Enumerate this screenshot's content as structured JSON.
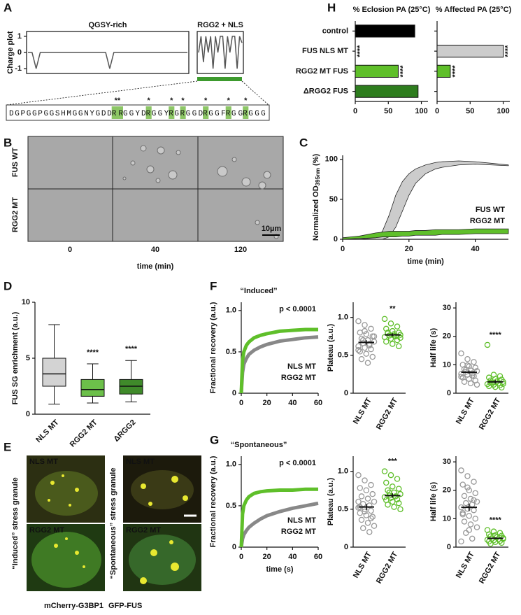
{
  "panels": {
    "letters": [
      "A",
      "B",
      "C",
      "D",
      "E",
      "F",
      "G",
      "H"
    ],
    "sequence": [
      {
        "text": "DGPGGPGGSHMGGNYGDD"
      },
      {
        "text": "RR",
        "star": "**"
      },
      {
        "text": "GGYD"
      },
      {
        "text": "R",
        "star": "*"
      },
      {
        "text": "GGY"
      },
      {
        "text": "R",
        "star": "*"
      },
      {
        "text": "G"
      },
      {
        "text": "R",
        "star": "*"
      },
      {
        "text": "GGD"
      },
      {
        "text": "R",
        "star": "*"
      },
      {
        "text": "GGF"
      },
      {
        "text": "R",
        "star": "*"
      },
      {
        "text": "GG"
      },
      {
        "text": "R",
        "star": "*"
      },
      {
        "text": "GGG"
      }
    ],
    "B": {
      "rows": [
        "FUS WT",
        "RGG2 MT"
      ],
      "times": [
        "0",
        "40",
        "120"
      ],
      "xlabel": "time (min)",
      "scale": "10µm"
    },
    "E": {
      "cells": [
        "NLS MT",
        "NLS MT",
        "RGG2 MT",
        "RGG2 MT"
      ],
      "conditions": [
        "“Induced” stress granule",
        "“Spontaneous” stress granule"
      ],
      "channels": [
        "mCherry-G3BP1",
        "GFP-FUS"
      ]
    }
  },
  "chart_data": [
    {
      "type": "line",
      "title": "QGSY-rich",
      "ylabel": "Charge plot",
      "color": "#555555",
      "ylim": [
        -1.3,
        1.3
      ],
      "yticks": [
        -1,
        0,
        1
      ],
      "values": [
        0,
        0,
        -1,
        0,
        0,
        0,
        0,
        0,
        0,
        0,
        0,
        0,
        0,
        0,
        0,
        0,
        0,
        0,
        0,
        0,
        -1,
        0,
        0,
        0,
        0,
        0,
        0,
        0,
        0,
        0,
        0,
        0,
        0,
        0,
        0,
        0,
        0,
        0,
        0,
        0
      ]
    },
    {
      "type": "line",
      "title": "RGG2 + NLS",
      "color": "#555555",
      "ylim": [
        -1.3,
        1.3
      ],
      "values": [
        0,
        1,
        -0.6,
        1,
        0,
        1,
        -1,
        1,
        0,
        1,
        1,
        -1,
        1,
        0,
        1,
        1,
        -1,
        1,
        0.6
      ]
    },
    {
      "type": "band",
      "ylabel": [
        "Normalized OD",
        "395nm",
        "(%)"
      ],
      "xlabel": "time (min)",
      "xlim": [
        0,
        50
      ],
      "ylim": [
        0,
        105
      ],
      "xticks": [
        0,
        20,
        40
      ],
      "yticks": [
        0,
        50,
        100
      ],
      "x": [
        0,
        5,
        10,
        12,
        14,
        16,
        18,
        20,
        22,
        25,
        28,
        30,
        35,
        40,
        45,
        50
      ],
      "series": [
        {
          "name": "FUS WT",
          "color": "#cccccc",
          "high": [
            0,
            0,
            2,
            10,
            30,
            55,
            72,
            82,
            88,
            93,
            96,
            97,
            98,
            97,
            95,
            93
          ],
          "low": [
            0,
            0,
            0,
            0,
            3,
            15,
            35,
            55,
            70,
            82,
            88,
            90,
            93,
            94,
            93,
            92
          ]
        },
        {
          "name": "RGG2 MT",
          "color": "#5fbf2a",
          "high": [
            2,
            4,
            8,
            9,
            10,
            10,
            10,
            10,
            11,
            11,
            12,
            12,
            12,
            13,
            13,
            13
          ],
          "low": [
            0,
            1,
            2,
            3,
            3,
            3,
            4,
            4,
            5,
            5,
            5,
            6,
            6,
            7,
            7,
            7
          ]
        }
      ]
    },
    {
      "type": "box",
      "ylabel": "FUS SG enrichment (a.u.)",
      "ylim": [
        0,
        10
      ],
      "yticks": [
        0,
        5,
        10
      ],
      "categories": [
        "NLS MT",
        "RGG2 MT",
        "ΔRGG2"
      ],
      "colors": [
        "#d3d3d3",
        "#6cc04a",
        "#3f8a2a"
      ],
      "annotations": [
        null,
        "****",
        "****"
      ],
      "boxes": [
        {
          "min": 0.9,
          "q1": 2.5,
          "median": 3.6,
          "q3": 5.0,
          "max": 8.0
        },
        {
          "min": 1.0,
          "q1": 1.6,
          "median": 2.2,
          "q3": 3.1,
          "max": 4.5
        },
        {
          "min": 1.1,
          "q1": 1.8,
          "median": 2.5,
          "q3": 3.1,
          "max": 4.8
        }
      ]
    },
    {
      "type": "line",
      "title": "“Induced”",
      "ylabel": "Fractional recovery (a.u.)",
      "annotation": "p < 0.0001",
      "xlim": [
        0,
        60
      ],
      "ylim": [
        0,
        1.1
      ],
      "xticks": [
        0,
        20,
        40,
        60
      ],
      "yticks": [
        0,
        0.5,
        {
          "value": 1,
          "label": "1.0"
        }
      ],
      "x": [
        0,
        1,
        2,
        4,
        6,
        10,
        15,
        20,
        30,
        40,
        50,
        60
      ],
      "series": [
        {
          "name": "NLS MT",
          "color": "#888888",
          "values": [
            0,
            0.25,
            0.35,
            0.42,
            0.47,
            0.52,
            0.56,
            0.59,
            0.63,
            0.65,
            0.67,
            0.68
          ]
        },
        {
          "name": "RGG2 MT",
          "color": "#5fbf2a",
          "values": [
            0,
            0.4,
            0.5,
            0.58,
            0.62,
            0.67,
            0.7,
            0.72,
            0.75,
            0.76,
            0.77,
            0.77
          ]
        }
      ]
    },
    {
      "type": "strip",
      "ylabel": "Plateau (a.u.)",
      "ylim": [
        0,
        1.2
      ],
      "yticks": [
        0,
        0.5,
        {
          "value": 1,
          "label": "1.0"
        }
      ],
      "annotations": [
        null,
        "**"
      ],
      "series": [
        {
          "name": "NLS MT",
          "color": "#999999",
          "mean": 0.67,
          "sem": 0.03,
          "values": [
            0.95,
            0.9,
            0.85,
            0.8,
            0.78,
            0.75,
            0.72,
            0.7,
            0.68,
            0.66,
            0.65,
            0.62,
            0.6,
            0.58,
            0.55,
            0.52,
            0.48,
            0.45,
            0.4,
            0.75,
            0.7,
            0.63,
            0.57,
            0.82
          ]
        },
        {
          "name": "RGG2 MT",
          "color": "#5fbf2a",
          "mean": 0.77,
          "sem": 0.02,
          "values": [
            0.98,
            0.92,
            0.88,
            0.85,
            0.82,
            0.8,
            0.79,
            0.78,
            0.77,
            0.76,
            0.75,
            0.74,
            0.72,
            0.7,
            0.68,
            0.65,
            0.62,
            0.8,
            0.76,
            0.73
          ]
        }
      ]
    },
    {
      "type": "strip",
      "ylabel": "Half life (s)",
      "ylim": [
        0,
        32
      ],
      "yticks": [
        0,
        10,
        20,
        30
      ],
      "annotations": [
        null,
        "****"
      ],
      "series": [
        {
          "name": "NLS MT",
          "color": "#999999",
          "mean": 7.4,
          "sem": 0.6,
          "values": [
            14,
            12,
            11,
            10,
            9.5,
            9,
            8.5,
            8,
            7.8,
            7.5,
            7,
            6.8,
            6.5,
            6,
            5.5,
            5,
            4.5,
            4,
            3.5,
            3,
            8.2,
            6.2,
            5.8,
            9.8
          ]
        },
        {
          "name": "RGG2 MT",
          "color": "#5fbf2a",
          "mean": 4,
          "sem": 0.6,
          "values": [
            17,
            6.5,
            6,
            5.5,
            5,
            4.8,
            4.5,
            4.2,
            4,
            3.8,
            3.5,
            3.2,
            3,
            2.8,
            2.5,
            2.2,
            2,
            3.6,
            4.1,
            3.3
          ]
        }
      ]
    },
    {
      "type": "line",
      "title": "“Spontaneous”",
      "ylabel": "Fractional recovery (a.u.)",
      "xlabel": "time (s)",
      "annotation": "p < 0.0001",
      "xlim": [
        0,
        60
      ],
      "ylim": [
        0,
        1.1
      ],
      "xticks": [
        0,
        20,
        40,
        60
      ],
      "yticks": [
        0,
        0.5,
        {
          "value": 1,
          "label": "1.0"
        }
      ],
      "x": [
        0,
        1,
        2,
        4,
        6,
        10,
        15,
        20,
        30,
        40,
        50,
        60
      ],
      "series": [
        {
          "name": "NLS MT",
          "color": "#888888",
          "values": [
            0,
            0.1,
            0.15,
            0.2,
            0.24,
            0.29,
            0.34,
            0.38,
            0.43,
            0.47,
            0.5,
            0.53
          ]
        },
        {
          "name": "RGG2 MT",
          "color": "#5fbf2a",
          "values": [
            0,
            0.4,
            0.5,
            0.57,
            0.61,
            0.65,
            0.67,
            0.68,
            0.69,
            0.69,
            0.7,
            0.7
          ]
        }
      ]
    },
    {
      "type": "strip",
      "ylabel": "Plateau (a.u.)",
      "ylim": [
        0,
        1.2
      ],
      "yticks": [
        0,
        0.5,
        {
          "value": 1,
          "label": "1.0"
        }
      ],
      "annotations": [
        null,
        "***"
      ],
      "series": [
        {
          "name": "NLS MT",
          "color": "#999999",
          "mean": 0.53,
          "sem": 0.04,
          "values": [
            0.95,
            0.88,
            0.82,
            0.78,
            0.75,
            0.7,
            0.67,
            0.64,
            0.6,
            0.57,
            0.55,
            0.52,
            0.5,
            0.48,
            0.45,
            0.42,
            0.4,
            0.36,
            0.32,
            0.28,
            0.25,
            0.2,
            0.6,
            0.47,
            0.38,
            0.53
          ]
        },
        {
          "name": "RGG2 MT",
          "color": "#5fbf2a",
          "mean": 0.68,
          "sem": 0.03,
          "values": [
            1.0,
            0.95,
            0.9,
            0.85,
            0.8,
            0.77,
            0.75,
            0.72,
            0.7,
            0.68,
            0.67,
            0.66,
            0.65,
            0.63,
            0.62,
            0.6,
            0.58,
            0.56,
            0.53,
            0.5,
            0.72
          ]
        }
      ]
    },
    {
      "type": "strip",
      "ylabel": "Half life (s)",
      "ylim": [
        0,
        32
      ],
      "yticks": [
        0,
        10,
        20,
        30
      ],
      "annotations": [
        null,
        "****"
      ],
      "series": [
        {
          "name": "NLS MT",
          "color": "#999999",
          "mean": 14,
          "sem": 1.3,
          "values": [
            27,
            25,
            23,
            22,
            20,
            19,
            18,
            17,
            16,
            15.5,
            15,
            14,
            13.5,
            13,
            12,
            11,
            10,
            9,
            8,
            7,
            5,
            3,
            2,
            21,
            16.5,
            11.5,
            6
          ]
        },
        {
          "name": "RGG2 MT",
          "color": "#5fbf2a",
          "mean": 3.1,
          "sem": 0.3,
          "values": [
            6,
            5.5,
            5,
            4.5,
            4.2,
            4,
            3.8,
            3.5,
            3.2,
            3,
            2.8,
            2.6,
            2.4,
            2.2,
            2,
            1.8,
            1.5,
            1.2,
            3.6,
            2.9
          ]
        }
      ]
    },
    {
      "type": "hbar",
      "title": "% Eclosion PA (25°C)",
      "xlim": [
        0,
        110
      ],
      "xticks": [
        0,
        50,
        100
      ],
      "categories": [
        "control",
        "FUS NLS MT",
        "RGG2 MT FUS",
        "ΔRGG2 FUS"
      ],
      "colors": [
        "#000000",
        "#cccccc",
        "#5fbf2a",
        "#2e7d1e"
      ],
      "values": [
        90,
        0,
        65,
        95
      ],
      "annotations": [
        null,
        "****",
        "****",
        null
      ]
    },
    {
      "type": "hbar",
      "title": "% Affected PA (25°C)",
      "xlim": [
        0,
        110
      ],
      "xticks": [
        0,
        50,
        100
      ],
      "colors": [
        "#000000",
        "#cccccc",
        "#5fbf2a",
        "#2e7d1e"
      ],
      "values": [
        null,
        100,
        20,
        null
      ],
      "annotations": [
        null,
        "****",
        "****",
        null
      ]
    }
  ]
}
